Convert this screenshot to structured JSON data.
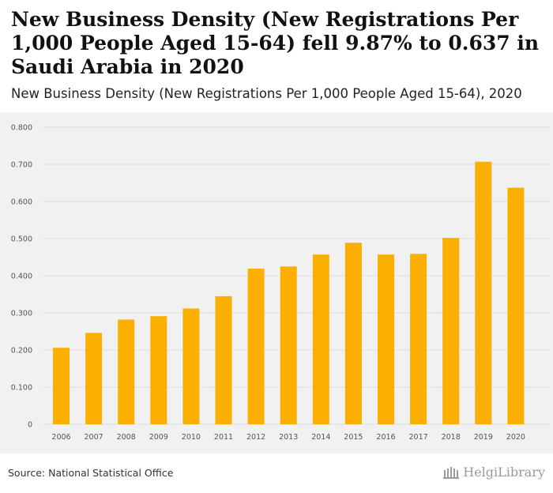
{
  "header": {
    "title": "New Business Density (New Registrations Per 1,000 People Aged 15-64) fell 9.87% to 0.637 in Saudi Arabia in 2020",
    "subtitle": "New Business Density (New Registrations Per 1,000 People Aged 15-64), 2020"
  },
  "footer": {
    "source": "Source: National Statistical Office",
    "brand": "HelgiLibrary"
  },
  "colors": {
    "bar": "#FBAF00",
    "grid": "#dddddd",
    "background": "#f1f1f1"
  },
  "chart_data": {
    "type": "bar",
    "categories": [
      "2006",
      "2007",
      "2008",
      "2009",
      "2010",
      "2011",
      "2012",
      "2013",
      "2014",
      "2015",
      "2016",
      "2017",
      "2018",
      "2019",
      "2020"
    ],
    "values": [
      0.206,
      0.246,
      0.282,
      0.291,
      0.312,
      0.345,
      0.419,
      0.425,
      0.457,
      0.489,
      0.457,
      0.459,
      0.502,
      0.707,
      0.637
    ],
    "yticks": [
      "0",
      "0.100",
      "0.200",
      "0.300",
      "0.400",
      "0.500",
      "0.600",
      "0.700",
      "0.800"
    ],
    "ylim": [
      0,
      0.8
    ],
    "xlabel": "",
    "ylabel": "",
    "grid": true
  }
}
